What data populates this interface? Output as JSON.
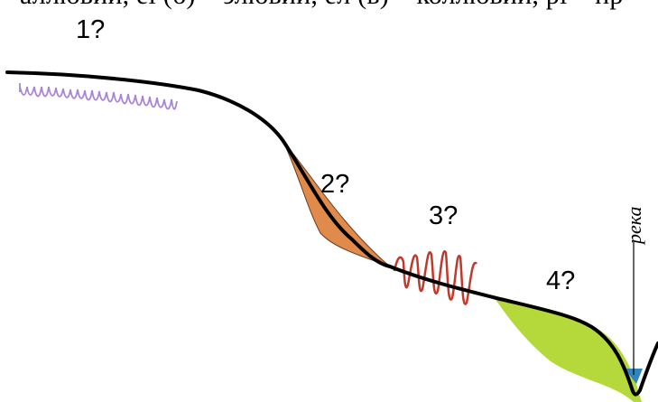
{
  "header_fragment": "аллювий, el (б) – элювий, eл (в) – коллювий, pl – пр",
  "zones": [
    {
      "label": "1?",
      "color": "#a985d6"
    },
    {
      "label": "2?",
      "color": "#e08a4b"
    },
    {
      "label": "3?",
      "color": "#c0392b"
    },
    {
      "label": "4?",
      "color": "#b5d83a"
    }
  ],
  "river": {
    "label": "река",
    "color": "#2e86c1"
  },
  "profile_color": "#000000"
}
